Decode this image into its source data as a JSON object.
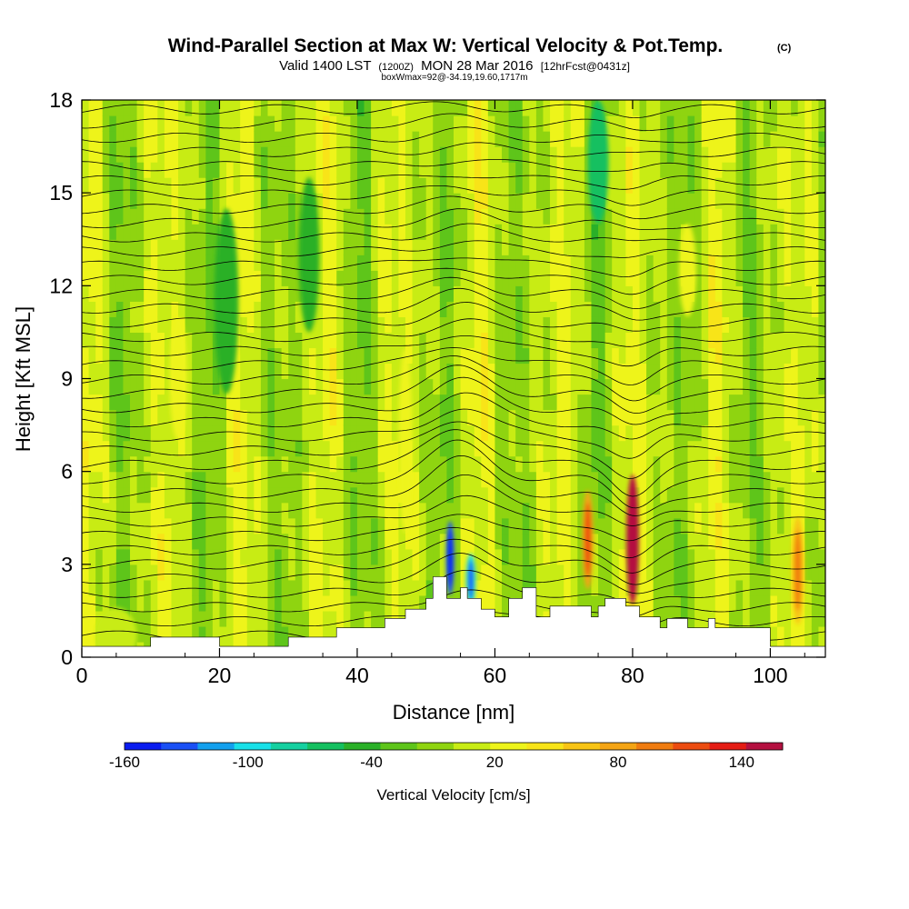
{
  "chart_data": {
    "type": "heatmap",
    "title": "Wind-Parallel Section at Max W: Vertical Velocity & Pot.Temp.",
    "title_mark": "(C)",
    "subtitle_parts": [
      "Valid 1400 LST",
      "(1200Z)",
      "MON 28 Mar 2016",
      "[12hrFcst@0431z]"
    ],
    "subsubtitle": "boxWmax=92@-34.19,19.60,1717m",
    "xlabel": "Distance [nm]",
    "ylabel": "Height [Kft MSL]",
    "xlim": [
      0,
      108
    ],
    "ylim": [
      0,
      18
    ],
    "x_ticks": [
      0,
      20,
      40,
      60,
      80,
      100
    ],
    "x_tick_labels": [
      "0",
      "20",
      "40",
      "60",
      "80",
      "100"
    ],
    "y_ticks": [
      0,
      3,
      6,
      9,
      12,
      15,
      18
    ],
    "y_tick_labels": [
      "0",
      "3",
      "6",
      "9",
      "12",
      "15",
      "18"
    ],
    "colorbar": {
      "label": "Vertical Velocity [cm/s]",
      "bounds": [
        -160,
        160
      ],
      "colors": [
        "#0a1cf0",
        "#1a50f5",
        "#12a0ee",
        "#18e0e8",
        "#14d0a0",
        "#14c060",
        "#2ab028",
        "#5ec51a",
        "#8fd410",
        "#c8ec14",
        "#eef41a",
        "#f8e418",
        "#f8c414",
        "#f4a414",
        "#f07c10",
        "#ec4c10",
        "#e41c14",
        "#b41040"
      ],
      "tick_values": [
        -160,
        -100,
        -40,
        20,
        80,
        140
      ],
      "tick_labels": [
        "-160",
        "-100",
        "-40",
        "20",
        "80",
        "140"
      ]
    },
    "terrain_kft": [
      [
        0,
        0.35
      ],
      [
        10,
        0.35
      ],
      [
        10,
        0.65
      ],
      [
        20,
        0.65
      ],
      [
        20,
        0.35
      ],
      [
        30,
        0.35
      ],
      [
        30,
        0.65
      ],
      [
        37,
        0.65
      ],
      [
        37,
        0.95
      ],
      [
        44,
        0.95
      ],
      [
        44,
        1.25
      ],
      [
        47,
        1.25
      ],
      [
        47,
        1.55
      ],
      [
        50,
        1.55
      ],
      [
        50,
        1.9
      ],
      [
        51,
        1.9
      ],
      [
        51,
        2.6
      ],
      [
        53,
        2.6
      ],
      [
        53,
        1.9
      ],
      [
        55,
        1.9
      ],
      [
        55,
        2.25
      ],
      [
        56,
        2.25
      ],
      [
        56,
        1.9
      ],
      [
        58,
        1.9
      ],
      [
        58,
        1.55
      ],
      [
        60,
        1.55
      ],
      [
        60,
        1.3
      ],
      [
        62,
        1.3
      ],
      [
        62,
        1.9
      ],
      [
        64,
        1.9
      ],
      [
        64,
        2.25
      ],
      [
        66,
        2.25
      ],
      [
        66,
        1.3
      ],
      [
        68,
        1.3
      ],
      [
        68,
        1.65
      ],
      [
        74,
        1.65
      ],
      [
        74,
        1.3
      ],
      [
        75,
        1.3
      ],
      [
        75,
        1.65
      ],
      [
        76,
        1.65
      ],
      [
        76,
        1.9
      ],
      [
        79,
        1.9
      ],
      [
        79,
        1.65
      ],
      [
        81,
        1.65
      ],
      [
        81,
        1.3
      ],
      [
        84,
        1.3
      ],
      [
        84,
        0.95
      ],
      [
        85,
        0.95
      ],
      [
        85,
        1.25
      ],
      [
        88,
        1.25
      ],
      [
        88,
        0.95
      ],
      [
        91,
        0.95
      ],
      [
        91,
        1.25
      ],
      [
        92,
        1.25
      ],
      [
        92,
        0.95
      ],
      [
        100,
        0.95
      ],
      [
        100,
        0.35
      ],
      [
        108,
        0.35
      ]
    ],
    "velocity_features": [
      {
        "x": 5,
        "y": 0.7,
        "w": 6,
        "h": 1.8,
        "value": 10
      },
      {
        "x": 21,
        "y": 11.5,
        "w": 3.5,
        "h": 6,
        "value": -45
      },
      {
        "x": 33,
        "y": 13,
        "w": 3,
        "h": 5,
        "value": -45
      },
      {
        "x": 47,
        "y": 7,
        "w": 2,
        "h": 6,
        "value": 20
      },
      {
        "x": 53.5,
        "y": 3.2,
        "w": 1.2,
        "h": 2.4,
        "value": -130
      },
      {
        "x": 56.5,
        "y": 2.5,
        "w": 1.4,
        "h": 1.7,
        "value": -95
      },
      {
        "x": 80,
        "y": 3.8,
        "w": 1.8,
        "h": 4.2,
        "value": 145
      },
      {
        "x": 73.5,
        "y": 3.8,
        "w": 1.6,
        "h": 3.2,
        "value": 80
      },
      {
        "x": 104,
        "y": 2.8,
        "w": 1.8,
        "h": 3.5,
        "value": 70
      },
      {
        "x": 75,
        "y": 16,
        "w": 3,
        "h": 4,
        "value": -60
      },
      {
        "x": 88,
        "y": 12.5,
        "w": 2.5,
        "h": 3,
        "value": 20
      },
      {
        "x": 14,
        "y": 9,
        "w": 2.5,
        "h": 4,
        "value": 20
      }
    ],
    "theta_isentropes": {
      "count": 38,
      "lowest_kft": 0.7,
      "highest_kft": 17.7
    }
  }
}
